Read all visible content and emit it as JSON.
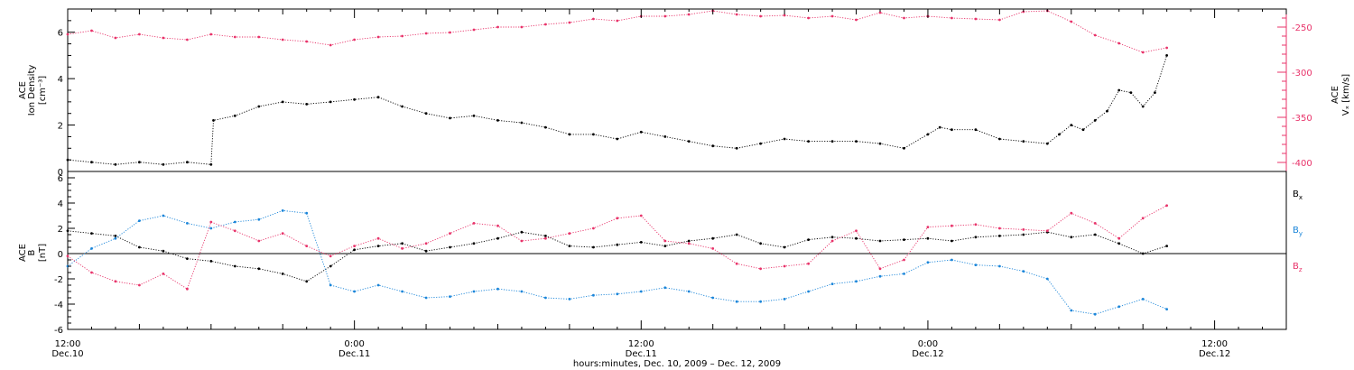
{
  "colors": {
    "axes": "#000000",
    "density": "#000000",
    "vx": "#e8336a",
    "bx": "#000000",
    "by": "#1a85d9",
    "bz": "#e8336a"
  },
  "chart_data": [
    {
      "type": "scatter",
      "panel": "top",
      "ylabel_lines": [
        "ACE",
        "Ion Density"
      ],
      "ylabel_unit": "[cm⁻³]",
      "ylim": [
        0,
        7
      ],
      "yticks": [
        0,
        2,
        4,
        6
      ],
      "y2label_lines": [
        "ACE"
      ],
      "y2label_unit": "Vₓ [km/s]",
      "y2lim": [
        -410,
        -230
      ],
      "y2ticks": [
        -250,
        -300,
        -350,
        -400
      ],
      "x_units": "hours since Dec. 10, 2009 12:00",
      "xlim": [
        0,
        51
      ],
      "series": [
        {
          "name": "Ion Density",
          "axis": "left",
          "x": [
            0,
            1,
            2,
            3,
            4,
            5,
            6,
            6.1,
            7,
            8,
            9,
            10,
            11,
            12,
            13,
            14,
            15,
            16,
            17,
            18,
            19,
            20,
            21,
            22,
            23,
            24,
            25,
            26,
            27,
            28,
            29,
            30,
            31,
            32,
            33,
            34,
            35,
            36,
            36.5,
            37,
            38,
            39,
            40,
            41,
            41.5,
            42,
            42.5,
            43,
            43.5,
            44,
            44.5,
            45,
            45.5,
            46
          ],
          "values": [
            0.5,
            0.4,
            0.3,
            0.4,
            0.3,
            0.4,
            0.3,
            2.2,
            2.4,
            2.8,
            3.0,
            2.9,
            3.0,
            3.1,
            3.2,
            2.8,
            2.5,
            2.3,
            2.4,
            2.2,
            2.1,
            1.9,
            1.6,
            1.6,
            1.4,
            1.7,
            1.5,
            1.3,
            1.1,
            1.0,
            1.2,
            1.4,
            1.3,
            1.3,
            1.3,
            1.2,
            1.0,
            1.6,
            1.9,
            1.8,
            1.8,
            1.4,
            1.3,
            1.2,
            1.6,
            2.0,
            1.8,
            2.2,
            2.6,
            3.5,
            3.4,
            2.8,
            3.4,
            5.0
          ]
        },
        {
          "name": "Vx",
          "axis": "right",
          "x": [
            0,
            1,
            2,
            3,
            4,
            5,
            6,
            7,
            8,
            9,
            10,
            11,
            12,
            13,
            14,
            15,
            16,
            17,
            18,
            19,
            20,
            21,
            22,
            23,
            24,
            25,
            26,
            27,
            28,
            29,
            30,
            31,
            32,
            33,
            34,
            35,
            36,
            37,
            38,
            39,
            40,
            41,
            42,
            43,
            44,
            45,
            46
          ],
          "values": [
            -258,
            -254,
            -262,
            -258,
            -262,
            -264,
            -258,
            -261,
            -261,
            -264,
            -266,
            -270,
            -264,
            -261,
            -260,
            -257,
            -256,
            -253,
            -250,
            -250,
            -247,
            -245,
            -241,
            -243,
            -238,
            -238,
            -236,
            -232,
            -236,
            -238,
            -237,
            -240,
            -238,
            -242,
            -234,
            -240,
            -238,
            -240,
            -241,
            -242,
            -233,
            -232,
            -244,
            -259,
            -268,
            -278,
            -273
          ]
        }
      ]
    },
    {
      "type": "scatter",
      "panel": "bottom",
      "ylabel_lines": [
        "ACE",
        "B"
      ],
      "ylabel_unit": "[nT]",
      "ylim": [
        -6,
        6.5
      ],
      "yticks": [
        -6,
        -4,
        -2,
        0,
        2,
        4,
        6
      ],
      "x_units": "hours since Dec. 10, 2009 12:00",
      "xlim": [
        0,
        51
      ],
      "xtick_labels": [
        {
          "x": 0,
          "time": "12:00",
          "day": "Dec.10"
        },
        {
          "x": 12,
          "time": "0:00",
          "day": "Dec.11"
        },
        {
          "x": 24,
          "time": "12:00",
          "day": "Dec.11"
        },
        {
          "x": 36,
          "time": "0:00",
          "day": "Dec.12"
        },
        {
          "x": 48,
          "time": "12:00",
          "day": "Dec.12"
        }
      ],
      "xlabel": "hours:minutes, Dec. 10, 2009 – Dec. 12, 2009",
      "series": [
        {
          "name": "B",
          "sub": "x",
          "x": [
            0,
            1,
            2,
            3,
            4,
            5,
            6,
            7,
            8,
            9,
            10,
            11,
            12,
            13,
            14,
            15,
            16,
            17,
            18,
            19,
            20,
            21,
            22,
            23,
            24,
            25,
            26,
            27,
            28,
            29,
            30,
            31,
            32,
            33,
            34,
            35,
            36,
            37,
            38,
            39,
            40,
            41,
            42,
            43,
            44,
            45,
            46
          ],
          "values": [
            1.8,
            1.6,
            1.4,
            0.5,
            0.2,
            -0.4,
            -0.6,
            -1.0,
            -1.2,
            -1.6,
            -2.2,
            -1.0,
            0.3,
            0.6,
            0.8,
            0.2,
            0.5,
            0.8,
            1.2,
            1.7,
            1.4,
            0.6,
            0.5,
            0.7,
            0.9,
            0.6,
            1.0,
            1.2,
            1.5,
            0.8,
            0.5,
            1.1,
            1.3,
            1.2,
            1.0,
            1.1,
            1.2,
            1.0,
            1.3,
            1.4,
            1.5,
            1.7,
            1.3,
            1.5,
            0.8,
            0.0,
            0.6
          ]
        },
        {
          "name": "B",
          "sub": "y",
          "x": [
            0,
            1,
            2,
            3,
            4,
            5,
            6,
            7,
            8,
            9,
            10,
            11,
            12,
            13,
            14,
            15,
            16,
            17,
            18,
            19,
            20,
            21,
            22,
            23,
            24,
            25,
            26,
            27,
            28,
            29,
            30,
            31,
            32,
            33,
            34,
            35,
            36,
            37,
            38,
            39,
            40,
            41,
            42,
            43,
            44,
            45,
            46
          ],
          "values": [
            -1.0,
            0.4,
            1.2,
            2.6,
            3.0,
            2.4,
            2.0,
            2.5,
            2.7,
            3.4,
            3.2,
            -2.5,
            -3.0,
            -2.5,
            -3.0,
            -3.5,
            -3.4,
            -3.0,
            -2.8,
            -3.0,
            -3.5,
            -3.6,
            -3.3,
            -3.2,
            -3.0,
            -2.7,
            -3.0,
            -3.5,
            -3.8,
            -3.8,
            -3.6,
            -3.0,
            -2.4,
            -2.2,
            -1.8,
            -1.6,
            -0.7,
            -0.5,
            -0.9,
            -1.0,
            -1.4,
            -2.0,
            -4.5,
            -4.8,
            -4.2,
            -3.6,
            -4.4
          ]
        },
        {
          "name": "B",
          "sub": "z",
          "x": [
            0,
            1,
            2,
            3,
            4,
            5,
            6,
            7,
            8,
            9,
            10,
            11,
            12,
            13,
            14,
            15,
            16,
            17,
            18,
            19,
            20,
            21,
            22,
            23,
            24,
            25,
            26,
            27,
            28,
            29,
            30,
            31,
            32,
            33,
            34,
            35,
            36,
            37,
            38,
            39,
            40,
            41,
            42,
            43,
            44,
            45,
            46
          ],
          "values": [
            -0.2,
            -1.5,
            -2.2,
            -2.5,
            -1.6,
            -2.8,
            2.5,
            1.8,
            1.0,
            1.6,
            0.6,
            -0.2,
            0.6,
            1.2,
            0.4,
            0.8,
            1.6,
            2.4,
            2.2,
            1.0,
            1.2,
            1.6,
            2.0,
            2.8,
            3.0,
            1.0,
            0.8,
            0.4,
            -0.8,
            -1.2,
            -1.0,
            -0.8,
            1.0,
            1.8,
            -1.2,
            -0.5,
            2.1,
            2.2,
            2.3,
            2.0,
            1.9,
            1.8,
            3.2,
            2.4,
            1.2,
            2.8,
            3.8
          ]
        }
      ]
    }
  ]
}
